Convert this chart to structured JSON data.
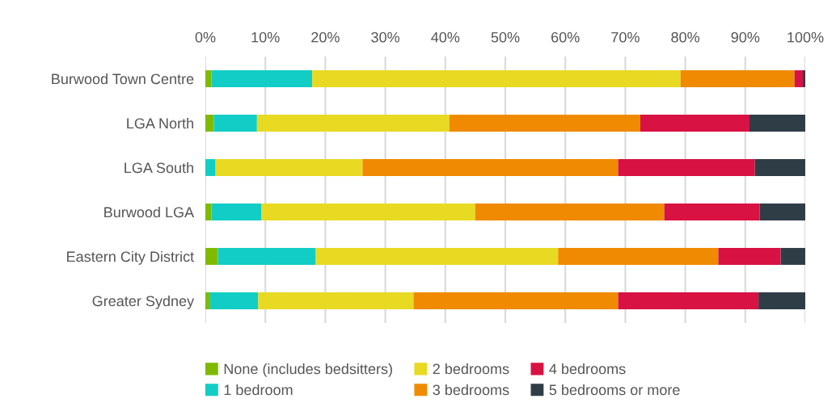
{
  "chart_data": {
    "type": "bar",
    "orientation": "horizontal",
    "stacked": true,
    "categories": [
      "Burwood Town Centre",
      "LGA North",
      "LGA South",
      "Burwood LGA",
      "Eastern City District",
      "Greater Sydney"
    ],
    "series": [
      {
        "name": "None (includes bedsitters)",
        "color": "#7fba00",
        "values": [
          1.0,
          1.4,
          0,
          1.0,
          2.1,
          0.8
        ]
      },
      {
        "name": "1 bedroom",
        "color": "#12cdc6",
        "values": [
          16.8,
          7.2,
          1.7,
          8.3,
          16.3,
          8.0
        ]
      },
      {
        "name": "2 bedrooms",
        "color": "#e8d923",
        "values": [
          61.4,
          32.1,
          24.5,
          35.7,
          40.4,
          25.9
        ]
      },
      {
        "name": "3 bedrooms",
        "color": "#f08a00",
        "values": [
          19.0,
          31.8,
          42.6,
          31.5,
          26.7,
          34.1
        ]
      },
      {
        "name": "4 bedrooms",
        "color": "#d81243",
        "values": [
          1.4,
          18.2,
          22.8,
          15.9,
          10.4,
          23.4
        ]
      },
      {
        "name": "5 bedrooms or more",
        "color": "#2f3d47",
        "values": [
          0.4,
          9.3,
          8.4,
          7.6,
          4.1,
          7.8
        ]
      }
    ],
    "xlim": [
      0,
      100
    ],
    "xticks": [
      {
        "value": 0,
        "label": "0%"
      },
      {
        "value": 10,
        "label": "10%"
      },
      {
        "value": 20,
        "label": "20%"
      },
      {
        "value": 30,
        "label": "30%"
      },
      {
        "value": 40,
        "label": "40%"
      },
      {
        "value": 50,
        "label": "50%"
      },
      {
        "value": 60,
        "label": "60%"
      },
      {
        "value": 70,
        "label": "70%"
      },
      {
        "value": 80,
        "label": "80%"
      },
      {
        "value": 90,
        "label": "90%"
      },
      {
        "value": 100,
        "label": "100%"
      }
    ],
    "grid": "x",
    "legend": "bottom"
  }
}
